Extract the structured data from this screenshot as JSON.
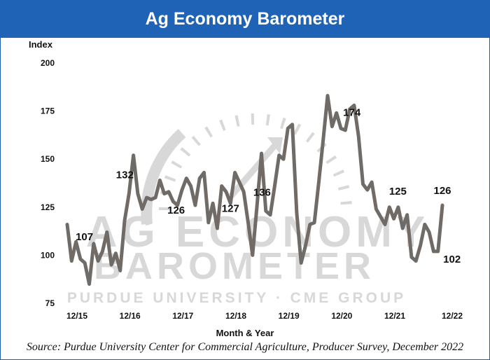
{
  "header": {
    "title": "Ag Economy Barometer"
  },
  "footer": {
    "source": "Source: Purdue University Center for Commercial Agriculture, Producer Survey, December 2022"
  },
  "watermark": {
    "line1": "AG ECONOMY",
    "line2": "BAROMETER",
    "line3": "PURDUE UNIVERSITY · CME GROUP"
  },
  "colors": {
    "title_bar": "#1f63b6",
    "series": "#706b66",
    "watermark": "#d8d8d8"
  },
  "chart_data": {
    "type": "line",
    "title": "Ag Economy Barometer",
    "ylabel": "Index",
    "xlabel": "Month & Year",
    "ylim": [
      75,
      200
    ],
    "yticks": [
      75,
      100,
      125,
      150,
      175,
      200
    ],
    "xtick_labels": [
      "12/15",
      "12/16",
      "12/17",
      "12/18",
      "12/19",
      "12/20",
      "12/21",
      "12/22"
    ],
    "grid": false,
    "series": [
      {
        "values": [
          116,
          97,
          107,
          98,
          96,
          85,
          106,
          97,
          102,
          112,
          95,
          101,
          92,
          118,
          132,
          152,
          132,
          124,
          130,
          129,
          130,
          139,
          132,
          133,
          128,
          126,
          134,
          140,
          136,
          126,
          140,
          143,
          117,
          127,
          114,
          136,
          133,
          127,
          143,
          138,
          133,
          117,
          100,
          126,
          153,
          123,
          121,
          136,
          152,
          150,
          166,
          168,
          122,
          96,
          105,
          116,
          117,
          138,
          160,
          183,
          167,
          174,
          166,
          165,
          176,
          178,
          162,
          137,
          134,
          138,
          124,
          120,
          116,
          125,
          119,
          125,
          114,
          121,
          99,
          97,
          105,
          116,
          112,
          102,
          102,
          126
        ]
      }
    ],
    "annotations": [
      {
        "label": "107",
        "index": 2
      },
      {
        "label": "132",
        "index": 14
      },
      {
        "label": "126",
        "index": 25
      },
      {
        "label": "127",
        "index": 37
      },
      {
        "label": "136",
        "index": 47
      },
      {
        "label": "174",
        "index": 61
      },
      {
        "label": "125",
        "index": 73
      },
      {
        "label": "102",
        "index": 84
      },
      {
        "label": "126",
        "index": 85
      }
    ]
  }
}
